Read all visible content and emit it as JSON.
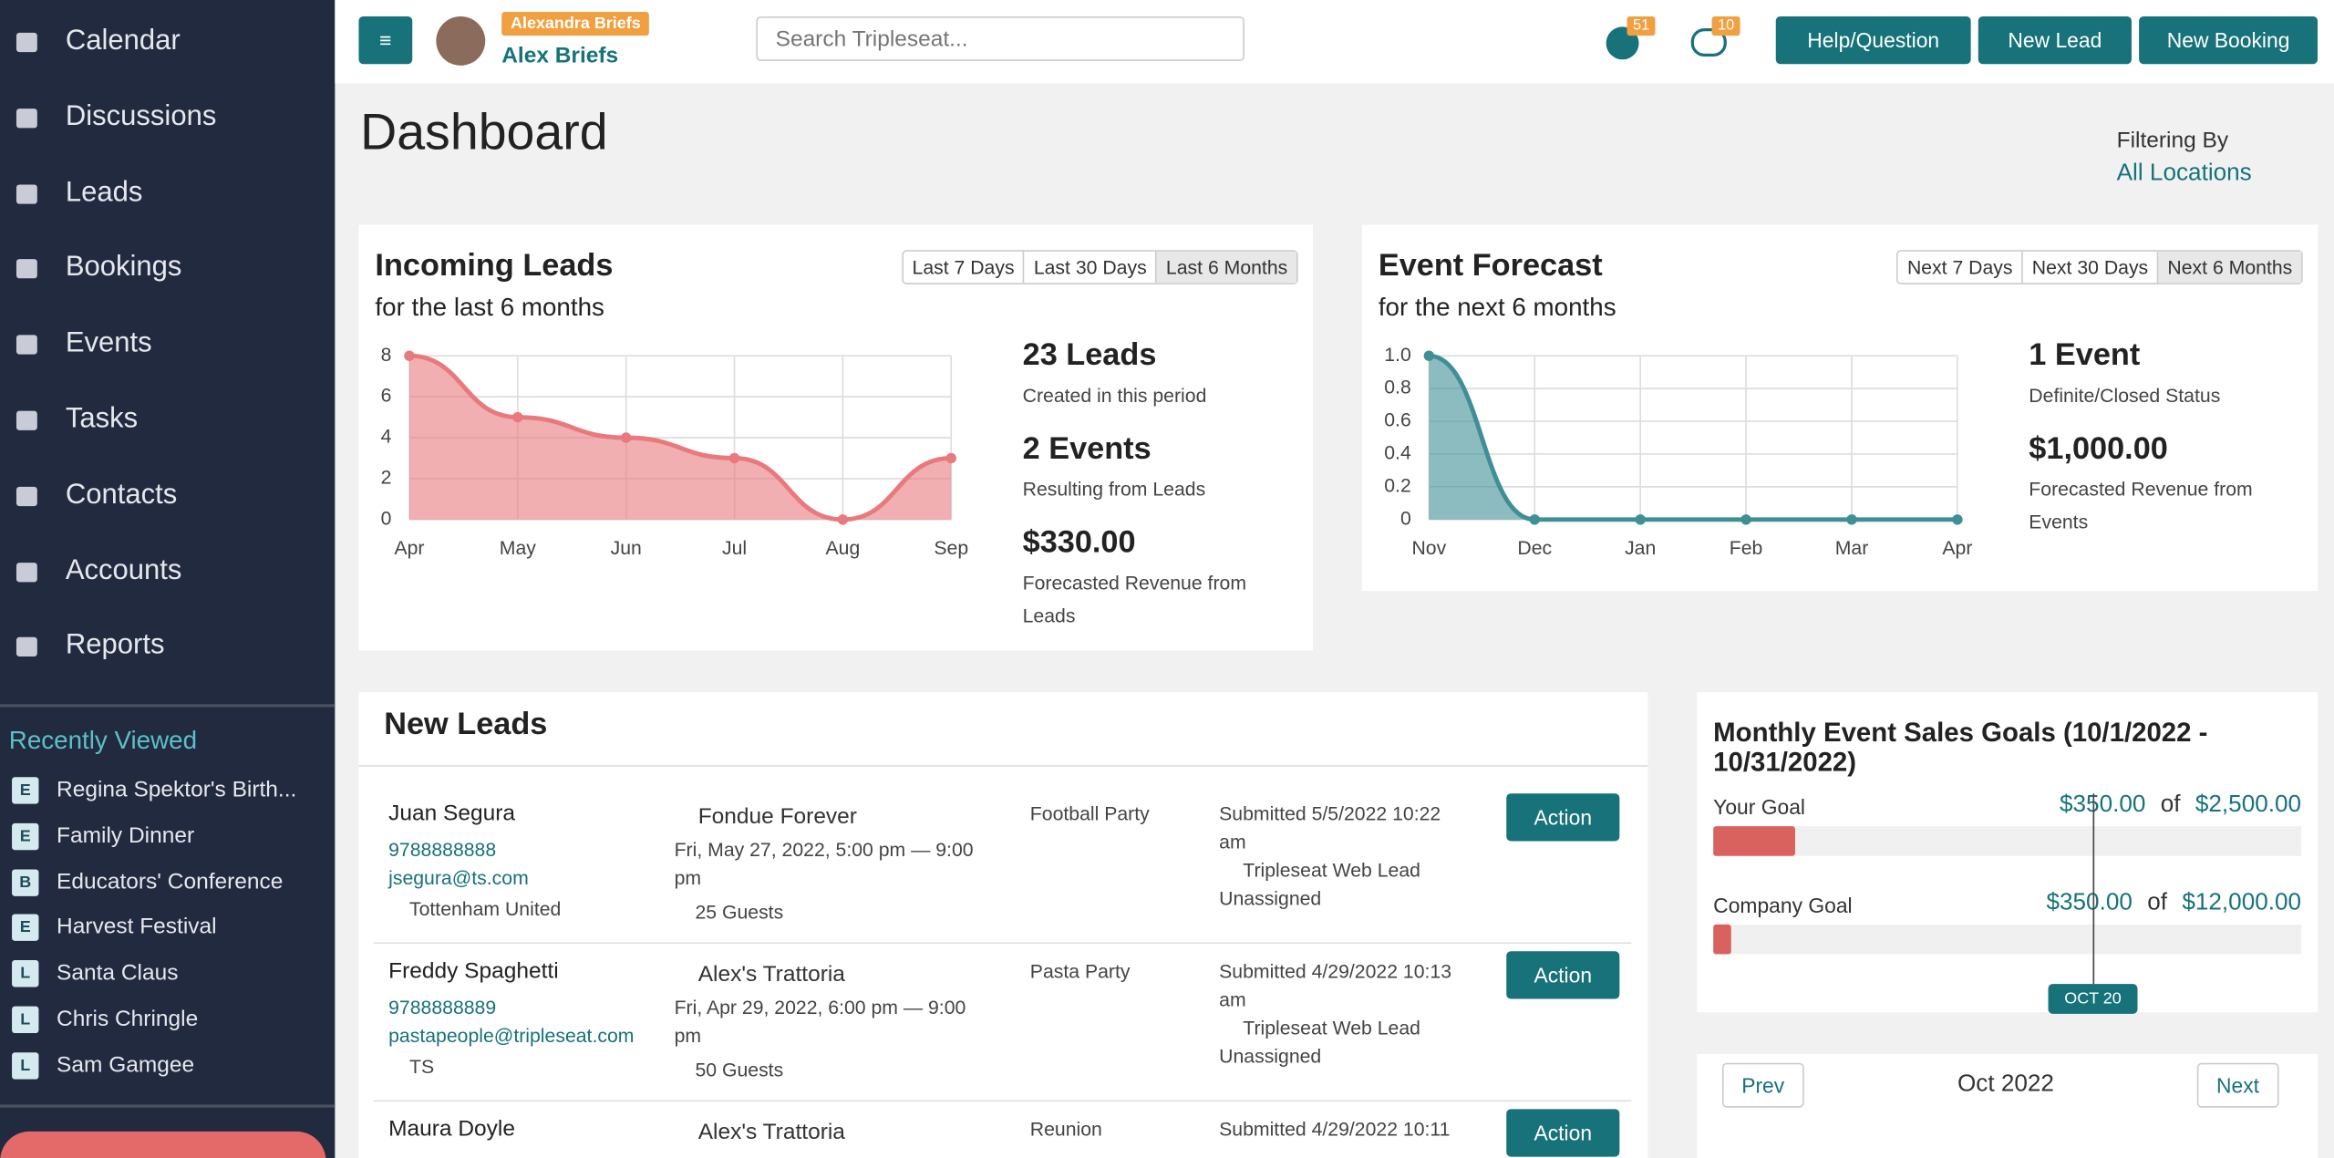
{
  "sidebar": {
    "nav": [
      "Calendar",
      "Discussions",
      "Leads",
      "Bookings",
      "Events",
      "Tasks",
      "Contacts",
      "Accounts",
      "Reports"
    ],
    "recently_viewed_title": "Recently Viewed",
    "recently_viewed": [
      {
        "badge": "E",
        "label": "Regina Spektor's Birth..."
      },
      {
        "badge": "E",
        "label": "Family Dinner"
      },
      {
        "badge": "B",
        "label": "Educators' Conference"
      },
      {
        "badge": "E",
        "label": "Harvest Festival"
      },
      {
        "badge": "L",
        "label": "Santa Claus"
      },
      {
        "badge": "L",
        "label": "Chris Chringle"
      },
      {
        "badge": "L",
        "label": "Sam Gamgee"
      }
    ]
  },
  "header": {
    "user_badge": "Alexandra Briefs",
    "user_name": "Alex Briefs",
    "search_placeholder": "Search Tripleseat...",
    "notifications": 51,
    "messages": 10,
    "buttons": [
      "Help/Question",
      "New Lead",
      "New Booking"
    ]
  },
  "page": {
    "title": "Dashboard",
    "filter_label": "Filtering By",
    "filter_value": "All Locations"
  },
  "incoming_leads": {
    "title": "Incoming Leads",
    "subtitle": "for the last 6 months",
    "ranges": [
      "Last 7 Days",
      "Last 30 Days",
      "Last 6 Months"
    ],
    "chart": {
      "type": "line",
      "categories": [
        "Apr",
        "May",
        "Jun",
        "Jul",
        "Aug",
        "Sep"
      ],
      "values": [
        8,
        5,
        4,
        3,
        0,
        3
      ],
      "color": "#e8797d",
      "ylim": [
        0,
        8
      ],
      "yticks": [
        0,
        2,
        4,
        6,
        8
      ],
      "grid": true
    },
    "stats": [
      {
        "value": "23 Leads",
        "label": "Created in this period"
      },
      {
        "value": "2 Events",
        "label": "Resulting from Leads"
      },
      {
        "value": "$330.00",
        "label": "Forecasted Revenue from Leads"
      }
    ]
  },
  "event_forecast": {
    "title": "Event Forecast",
    "subtitle": "for the next 6 months",
    "ranges": [
      "Next 7 Days",
      "Next 30 Days",
      "Next 6 Months"
    ],
    "chart": {
      "type": "line",
      "categories": [
        "Nov",
        "Dec",
        "Jan",
        "Feb",
        "Mar",
        "Apr"
      ],
      "values": [
        1,
        0,
        0,
        0,
        0,
        0
      ],
      "color": "#3f8f96",
      "ylim": [
        0,
        1
      ],
      "yticks": [
        0,
        0.2,
        0.4,
        0.6,
        0.8,
        {
          "value": 1,
          "label": "1.0"
        }
      ],
      "grid": true
    },
    "stats": [
      {
        "value": "1 Event",
        "label": "Definite/Closed Status"
      },
      {
        "value": "$1,000.00",
        "label": "Forecasted Revenue from Events"
      }
    ]
  },
  "new_leads": {
    "title": "New Leads",
    "rows": [
      {
        "name": "Juan Segura",
        "phone": "9788888888",
        "email": "jsegura@ts.com",
        "account": "Tottenham United",
        "venue": "Fondue Forever",
        "date": "Fri, May 27, 2022, 5:00 pm — 9:00 pm",
        "guests": "25 Guests",
        "event_type": "Football Party",
        "submitted": "Submitted 5/5/2022 10:22 am",
        "source": "Tripleseat Web Lead",
        "status": "Unassigned",
        "action": "Action"
      },
      {
        "name": "Freddy Spaghetti",
        "phone": "9788888889",
        "email": "pastapeople@tripleseat.com",
        "account": "TS",
        "venue": "Alex's Trattoria",
        "date": "Fri, Apr 29, 2022, 6:00 pm — 9:00 pm",
        "guests": "50 Guests",
        "event_type": "Pasta Party",
        "submitted": "Submitted 4/29/2022 10:13 am",
        "source": "Tripleseat Web Lead",
        "status": "Unassigned",
        "action": "Action"
      },
      {
        "name": "Maura Doyle",
        "venue": "Alex's Trattoria",
        "event_type": "Reunion",
        "submitted": "Submitted 4/29/2022 10:11",
        "action": "Action"
      }
    ]
  },
  "goals": {
    "title": "Monthly Event Sales Goals (10/1/2022 - 10/31/2022)",
    "of": "of",
    "marker": "OCT 20",
    "items": [
      {
        "label": "Your Goal",
        "current": {
          "value": 350,
          "label": "$350.00"
        },
        "target": {
          "value": 2500,
          "label": "$2,500.00"
        }
      },
      {
        "label": "Company Goal",
        "current": {
          "value": 350,
          "label": "$350.00"
        },
        "target": {
          "value": 12000,
          "label": "$12,000.00"
        }
      }
    ]
  },
  "calendar": {
    "prev": "Prev",
    "month": "Oct 2022",
    "next": "Next"
  }
}
